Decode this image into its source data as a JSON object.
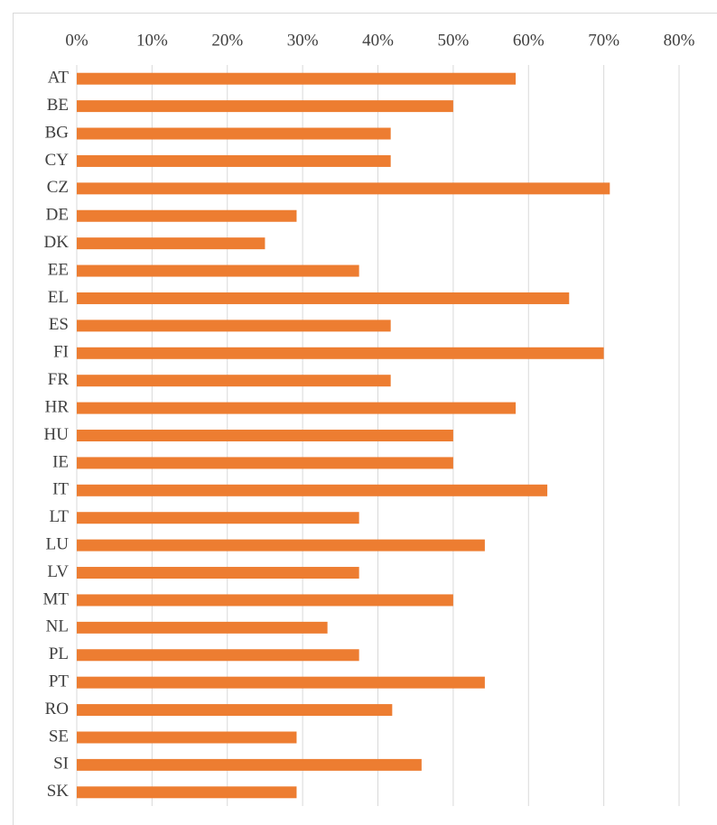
{
  "chart_data": {
    "type": "barh",
    "categories": [
      "AT",
      "BE",
      "BG",
      "CY",
      "CZ",
      "DE",
      "DK",
      "EE",
      "EL",
      "ES",
      "FI",
      "FR",
      "HR",
      "HU",
      "IE",
      "IT",
      "LT",
      "LU",
      "LV",
      "MT",
      "NL",
      "PL",
      "PT",
      "RO",
      "SE",
      "SI",
      "SK"
    ],
    "values": [
      58.3,
      50,
      41.7,
      41.7,
      70.8,
      29.2,
      25,
      37.5,
      65.4,
      41.7,
      70,
      41.7,
      58.3,
      50,
      50,
      62.5,
      37.5,
      54.2,
      37.5,
      50,
      33.3,
      37.5,
      54.2,
      41.9,
      29.2,
      45.8,
      29.2
    ],
    "color": "#ed7d31",
    "xlim": [
      0,
      80
    ],
    "xticks": [
      {
        "value": 0,
        "label": "0%"
      },
      {
        "value": 10,
        "label": "10%"
      },
      {
        "value": 20,
        "label": "20%"
      },
      {
        "value": 30,
        "label": "30%"
      },
      {
        "value": 40,
        "label": "40%"
      },
      {
        "value": 50,
        "label": "50%"
      },
      {
        "value": 60,
        "label": "60%"
      },
      {
        "value": 70,
        "label": "70%"
      },
      {
        "value": 80,
        "label": "80%"
      }
    ],
    "grid": true
  }
}
